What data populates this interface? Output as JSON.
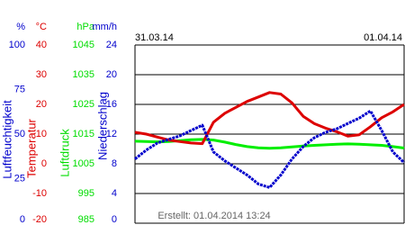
{
  "chart_data": {
    "type": "line",
    "x": [
      0,
      1,
      2,
      3,
      4,
      5,
      6,
      7,
      8,
      9,
      10,
      11,
      12,
      13,
      14,
      15,
      16,
      17,
      18,
      19,
      20,
      21,
      22,
      23,
      24
    ],
    "xlim": [
      0,
      24
    ],
    "xticks": [
      {
        "value": 0,
        "label": "31.03.14"
      },
      {
        "value": 24,
        "label": "01.04.14"
      }
    ],
    "axes": [
      {
        "unit": "%",
        "label": "Luftfeuchtigkeit",
        "color": "#0000cc",
        "lim": [
          0,
          100
        ],
        "ticks": [
          0,
          25,
          50,
          75,
          100
        ]
      },
      {
        "unit": "°C",
        "label": "Temperatur",
        "color": "#dd0000",
        "lim": [
          -20,
          40
        ],
        "ticks": [
          -20,
          -10,
          0,
          10,
          20,
          30,
          40
        ]
      },
      {
        "unit": "hPa",
        "label": "Luftdruck",
        "color": "#00dd00",
        "lim": [
          985,
          1045
        ],
        "ticks": [
          985,
          995,
          1005,
          1015,
          1025,
          1035,
          1045
        ]
      },
      {
        "unit": "mm/h",
        "label": "Niederschlag",
        "color": "#0000cc",
        "lim": [
          0,
          24
        ],
        "ticks": [
          0,
          4,
          8,
          12,
          16,
          20,
          24
        ]
      }
    ],
    "series": [
      {
        "axis": 2,
        "color": "#00ee00",
        "values": [
          1012.6,
          1012.5,
          1012.4,
          1012.5,
          1012.8,
          1013.1,
          1013.2,
          1013.0,
          1012.3,
          1011.5,
          1010.8,
          1010.4,
          1010.2,
          1010.4,
          1010.7,
          1011.0,
          1011.2,
          1011.4,
          1011.6,
          1011.7,
          1011.6,
          1011.4,
          1011.2,
          1010.8,
          1010.3
        ]
      },
      {
        "axis": 1,
        "color": "#dd0000",
        "values": [
          10.6,
          10,
          9,
          8,
          7.5,
          7,
          6.8,
          14,
          17,
          19,
          21,
          22.5,
          24,
          23.5,
          20.5,
          16,
          13.5,
          12,
          10.8,
          9.3,
          9.8,
          12.5,
          15.5,
          17.5,
          20
        ]
      },
      {
        "axis": 0,
        "color": "#0000cc",
        "values": [
          36,
          41,
          45,
          47,
          49,
          52,
          55,
          40,
          35,
          31,
          27,
          22,
          20,
          27,
          36,
          43,
          48,
          51,
          53,
          56,
          59,
          63,
          52,
          40,
          34
        ]
      }
    ],
    "grid": true,
    "annotation": "Erstellt: 01.04.2014 13:24"
  }
}
